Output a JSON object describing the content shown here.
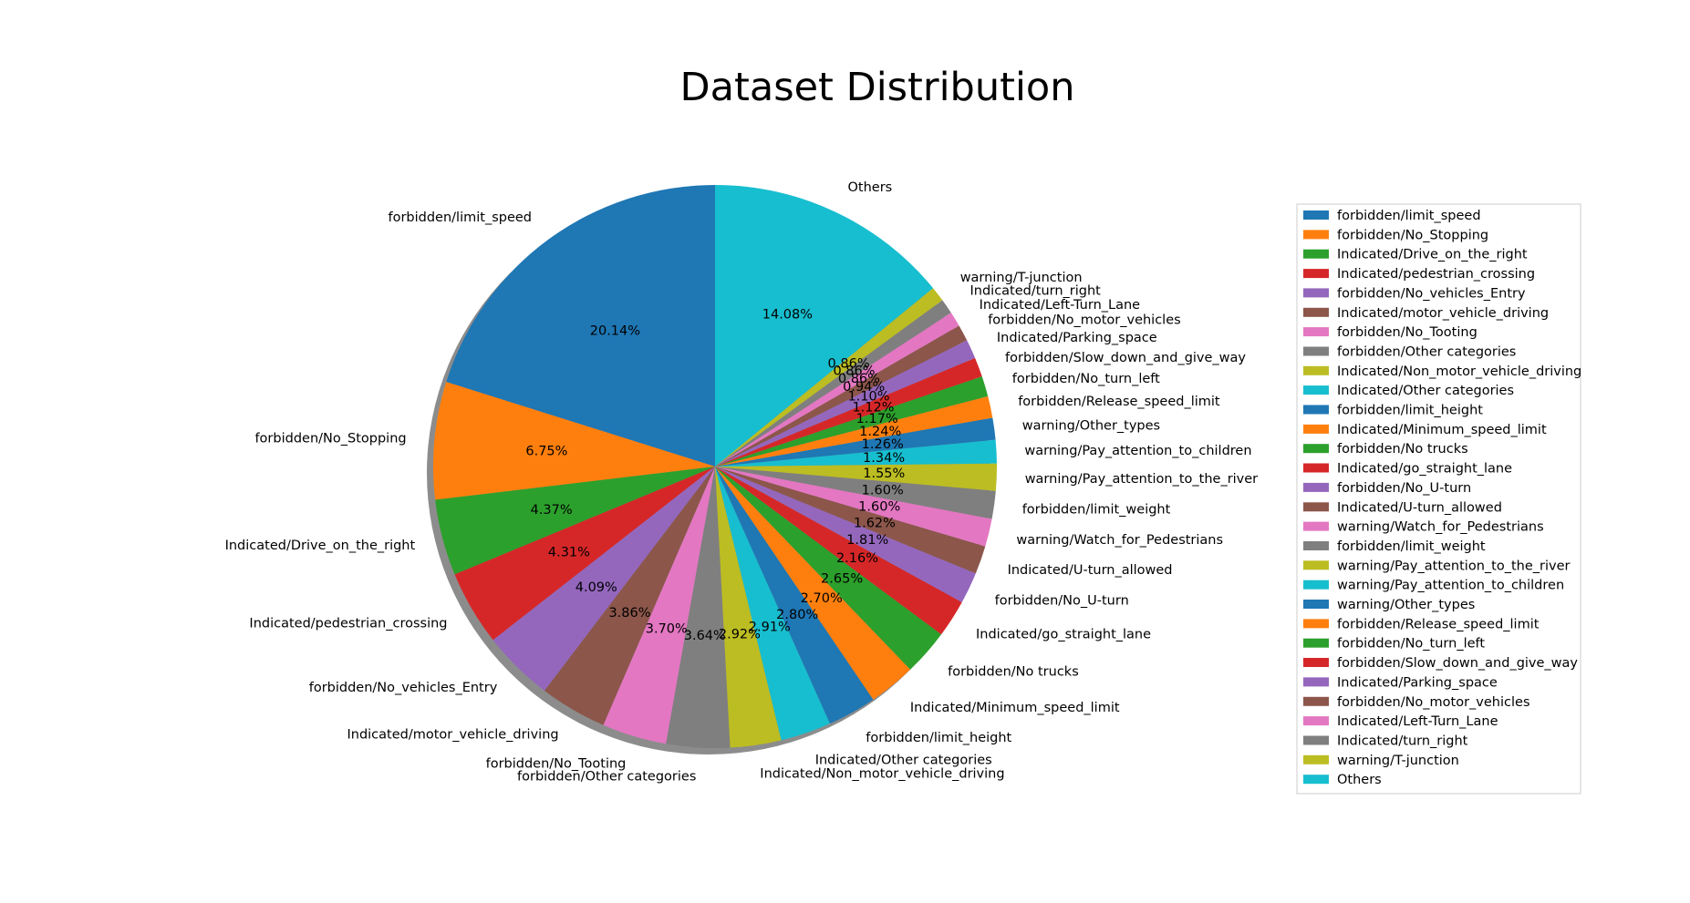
{
  "chart_data": {
    "type": "pie",
    "title": "Dataset Distribution",
    "shadow": true,
    "start_angle_deg": 90,
    "direction": "counterclockwise",
    "legend_placement": "right",
    "slices": [
      {
        "label": "forbidden/limit_speed",
        "pct_label": "20.14%",
        "value": 20.14,
        "color": "#1f77b4"
      },
      {
        "label": "forbidden/No_Stopping",
        "pct_label": "6.75%",
        "value": 6.75,
        "color": "#ff7f0e"
      },
      {
        "label": "Indicated/Drive_on_the_right",
        "pct_label": "4.37%",
        "value": 4.37,
        "color": "#2ca02c"
      },
      {
        "label": "Indicated/pedestrian_crossing",
        "pct_label": "4.31%",
        "value": 4.31,
        "color": "#d62728"
      },
      {
        "label": "forbidden/No_vehicles_Entry",
        "pct_label": "4.09%",
        "value": 4.09,
        "color": "#9467bd"
      },
      {
        "label": "Indicated/motor_vehicle_driving",
        "pct_label": "3.86%",
        "value": 3.86,
        "color": "#8c564b"
      },
      {
        "label": "forbidden/No_Tooting",
        "pct_label": "3.70%",
        "value": 3.7,
        "color": "#e377c2"
      },
      {
        "label": "forbidden/Other categories",
        "pct_label": "3.64%",
        "value": 3.64,
        "color": "#7f7f7f"
      },
      {
        "label": "Indicated/Non_motor_vehicle_driving",
        "pct_label": "2.92%",
        "value": 2.92,
        "color": "#bcbd22"
      },
      {
        "label": "Indicated/Other categories",
        "pct_label": "2.91%",
        "value": 2.91,
        "color": "#17becf"
      },
      {
        "label": "forbidden/limit_height",
        "pct_label": "2.80%",
        "value": 2.8,
        "color": "#1f77b4"
      },
      {
        "label": "Indicated/Minimum_speed_limit",
        "pct_label": "2.70%",
        "value": 2.7,
        "color": "#ff7f0e"
      },
      {
        "label": "forbidden/No trucks",
        "pct_label": "2.65%",
        "value": 2.65,
        "color": "#2ca02c"
      },
      {
        "label": "Indicated/go_straight_lane",
        "pct_label": "2.16%",
        "value": 2.16,
        "color": "#d62728"
      },
      {
        "label": "forbidden/No_U-turn",
        "pct_label": "1.81%",
        "value": 1.81,
        "color": "#9467bd"
      },
      {
        "label": "Indicated/U-turn_allowed",
        "pct_label": "1.62%",
        "value": 1.62,
        "color": "#8c564b"
      },
      {
        "label": "warning/Watch_for_Pedestrians",
        "pct_label": "1.60%",
        "value": 1.6,
        "color": "#e377c2"
      },
      {
        "label": "forbidden/limit_weight",
        "pct_label": "1.60%",
        "value": 1.6,
        "color": "#7f7f7f"
      },
      {
        "label": "warning/Pay_attention_to_the_river",
        "pct_label": "1.55%",
        "value": 1.55,
        "color": "#bcbd22"
      },
      {
        "label": "warning/Pay_attention_to_children",
        "pct_label": "1.34%",
        "value": 1.34,
        "color": "#17becf"
      },
      {
        "label": "warning/Other_types",
        "pct_label": "1.26%",
        "value": 1.26,
        "color": "#1f77b4"
      },
      {
        "label": "forbidden/Release_speed_limit",
        "pct_label": "1.24%",
        "value": 1.24,
        "color": "#ff7f0e"
      },
      {
        "label": "forbidden/No_turn_left",
        "pct_label": "1.17%",
        "value": 1.17,
        "color": "#2ca02c"
      },
      {
        "label": "forbidden/Slow_down_and_give_way",
        "pct_label": "1.12%",
        "value": 1.12,
        "color": "#d62728"
      },
      {
        "label": "Indicated/Parking_space",
        "pct_label": "1.10%",
        "value": 1.1,
        "color": "#9467bd"
      },
      {
        "label": "forbidden/No_motor_vehicles",
        "pct_label": "0.94%",
        "value": 0.94,
        "color": "#8c564b"
      },
      {
        "label": "Indicated/Left-Turn_Lane",
        "pct_label": "0.86%",
        "value": 0.86,
        "color": "#e377c2"
      },
      {
        "label": "Indicated/turn_right",
        "pct_label": "0.86%",
        "value": 0.86,
        "color": "#7f7f7f"
      },
      {
        "label": "warning/T-junction",
        "pct_label": "0.86%",
        "value": 0.86,
        "color": "#bcbd22"
      },
      {
        "label": "Others",
        "pct_label": "14.08%",
        "value": 14.08,
        "color": "#17becf"
      }
    ]
  }
}
